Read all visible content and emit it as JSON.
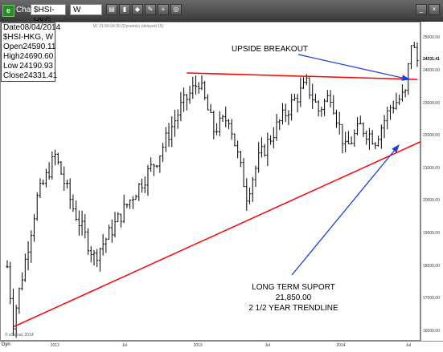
{
  "window": {
    "title": "Chart",
    "symbol_value": "$HSI-HKG",
    "interval_value": "W",
    "subheader": "W, 21:00-04:30 (Dynamic) (delayed 15)"
  },
  "info_box": {
    "date_label": "Date",
    "date_value": "08/04/2014",
    "symbol": "$HSI-HKG, W",
    "rows": [
      {
        "label": "Open",
        "value": "24590.11"
      },
      {
        "label": "High",
        "value": "24690.60"
      },
      {
        "label": "Low",
        "value": "24190.93"
      },
      {
        "label": "Close",
        "value": "24331.41"
      }
    ]
  },
  "annotations": {
    "breakout": "UPSIDE BREAKOUT",
    "support_line1": "LONG TERM SUPORT",
    "support_line2": "21,850.00",
    "support_line3": "2 1/2 YEAR TRENDLINE"
  },
  "footer": {
    "copyright": "© eSignal, 2014",
    "dyn_label": "Dyn"
  },
  "colors": {
    "resistance": "#ff0000",
    "support": "#ff0000",
    "arrow": "#1a3fe0",
    "bars": "#000000"
  },
  "chart_data": {
    "type": "ohlc",
    "title": "$HSI-HKG, W",
    "ylim": [
      15700,
      25500
    ],
    "y_ticks": [
      "25000.00",
      "24000.00",
      "23000.00",
      "22000.00",
      "21000.00",
      "20000.00",
      "19000.00",
      "18000.00",
      "17000.00",
      "16000.00"
    ],
    "last_price_label": "24331.41",
    "x_ticks": [
      "2012",
      "Jul",
      "2013",
      "Jul",
      "2014",
      "Jul"
    ],
    "close_anchors": [
      {
        "week": 0,
        "close": 18000
      },
      {
        "week": 2,
        "close": 16300
      },
      {
        "week": 10,
        "close": 20100
      },
      {
        "week": 16,
        "close": 21400
      },
      {
        "week": 22,
        "close": 19800
      },
      {
        "week": 29,
        "close": 18300
      },
      {
        "week": 34,
        "close": 19000
      },
      {
        "week": 42,
        "close": 20200
      },
      {
        "week": 50,
        "close": 21300
      },
      {
        "week": 58,
        "close": 22900
      },
      {
        "week": 64,
        "close": 23700
      },
      {
        "week": 69,
        "close": 22200
      },
      {
        "week": 74,
        "close": 22600
      },
      {
        "week": 80,
        "close": 20200
      },
      {
        "week": 84,
        "close": 21300
      },
      {
        "week": 90,
        "close": 22300
      },
      {
        "week": 95,
        "close": 23000
      },
      {
        "week": 100,
        "close": 23600
      },
      {
        "week": 104,
        "close": 22800
      },
      {
        "week": 108,
        "close": 23300
      },
      {
        "week": 113,
        "close": 21600
      },
      {
        "week": 118,
        "close": 22300
      },
      {
        "week": 123,
        "close": 21900
      },
      {
        "week": 128,
        "close": 22900
      },
      {
        "week": 133,
        "close": 23300
      },
      {
        "week": 135,
        "close": 24900
      },
      {
        "week": 137,
        "close": 24331
      }
    ],
    "resistance_line": {
      "from": {
        "week": 60,
        "price": 23950
      },
      "to": {
        "week": 137,
        "price": 23750
      }
    },
    "support_line": {
      "from": {
        "week": 2,
        "price": 16150
      },
      "to": {
        "week": 137,
        "price": 21700
      }
    }
  }
}
